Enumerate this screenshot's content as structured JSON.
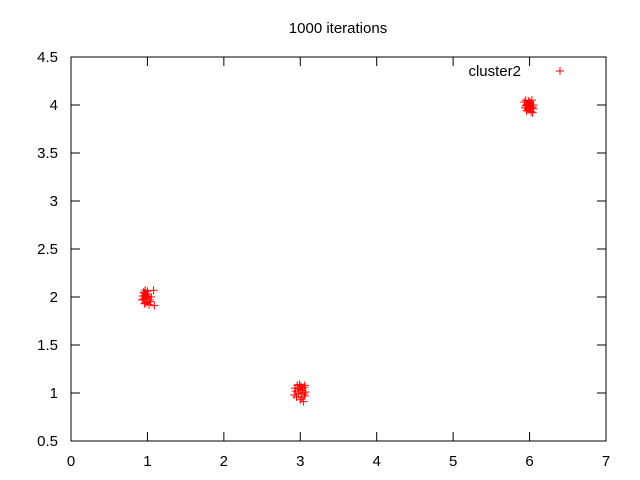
{
  "chart_data": {
    "type": "scatter",
    "title": "1000 iterations",
    "xlabel": "",
    "ylabel": "",
    "xlim": [
      0,
      7
    ],
    "ylim": [
      0.5,
      4.5
    ],
    "xticks": [
      "0",
      "1",
      "2",
      "3",
      "4",
      "5",
      "6",
      "7"
    ],
    "yticks": [
      "0.5",
      "1",
      "1.5",
      "2",
      "2.5",
      "3",
      "3.5",
      "4",
      "4.5"
    ],
    "grid": false,
    "legend_position": "top-right",
    "marker": "plus",
    "color": "#ff0000",
    "series": [
      {
        "name": "cluster2",
        "points": [
          [
            0.93,
            1.97
          ],
          [
            0.94,
            2.01
          ],
          [
            0.95,
            2.05
          ],
          [
            0.96,
            1.93
          ],
          [
            0.97,
            2.07
          ],
          [
            0.98,
            1.99
          ],
          [
            0.99,
            2.03
          ],
          [
            1.0,
            1.95
          ],
          [
            1.01,
            2.01
          ],
          [
            1.02,
            1.92
          ],
          [
            0.95,
            1.98
          ],
          [
            0.97,
            2.02
          ],
          [
            1.03,
            1.97
          ],
          [
            1.05,
            2.0
          ],
          [
            1.08,
            2.07
          ],
          [
            1.09,
            1.91
          ],
          [
            0.96,
            2.04
          ],
          [
            0.98,
            1.94
          ],
          [
            1.0,
            2.06
          ],
          [
            1.04,
            1.95
          ],
          [
            2.92,
            0.98
          ],
          [
            2.94,
            1.02
          ],
          [
            2.95,
            0.96
          ],
          [
            2.97,
            1.05
          ],
          [
            2.98,
            1.0
          ],
          [
            3.0,
            0.93
          ],
          [
            3.01,
            1.07
          ],
          [
            3.02,
            0.99
          ],
          [
            3.03,
            1.03
          ],
          [
            3.04,
            0.91
          ],
          [
            3.05,
            1.06
          ],
          [
            3.06,
            0.97
          ],
          [
            3.07,
            1.01
          ],
          [
            2.96,
            1.08
          ],
          [
            3.0,
            1.04
          ],
          [
            3.02,
            0.95
          ],
          [
            2.99,
            1.09
          ],
          [
            3.05,
            0.99
          ],
          [
            2.93,
            1.05
          ],
          [
            3.06,
            1.08
          ],
          [
            5.93,
            4.03
          ],
          [
            5.94,
            3.97
          ],
          [
            5.95,
            4.05
          ],
          [
            5.96,
            3.94
          ],
          [
            5.97,
            4.01
          ],
          [
            5.98,
            3.99
          ],
          [
            5.99,
            4.04
          ],
          [
            6.0,
            3.96
          ],
          [
            6.01,
            4.02
          ],
          [
            6.02,
            3.93
          ],
          [
            6.03,
            4.05
          ],
          [
            6.04,
            3.98
          ],
          [
            6.05,
            4.0
          ],
          [
            5.96,
            4.0
          ],
          [
            5.98,
            3.95
          ],
          [
            6.0,
            4.03
          ],
          [
            6.02,
            3.97
          ],
          [
            6.04,
            3.92
          ],
          [
            6.05,
            3.96
          ],
          [
            5.95,
            3.99
          ]
        ]
      }
    ]
  }
}
